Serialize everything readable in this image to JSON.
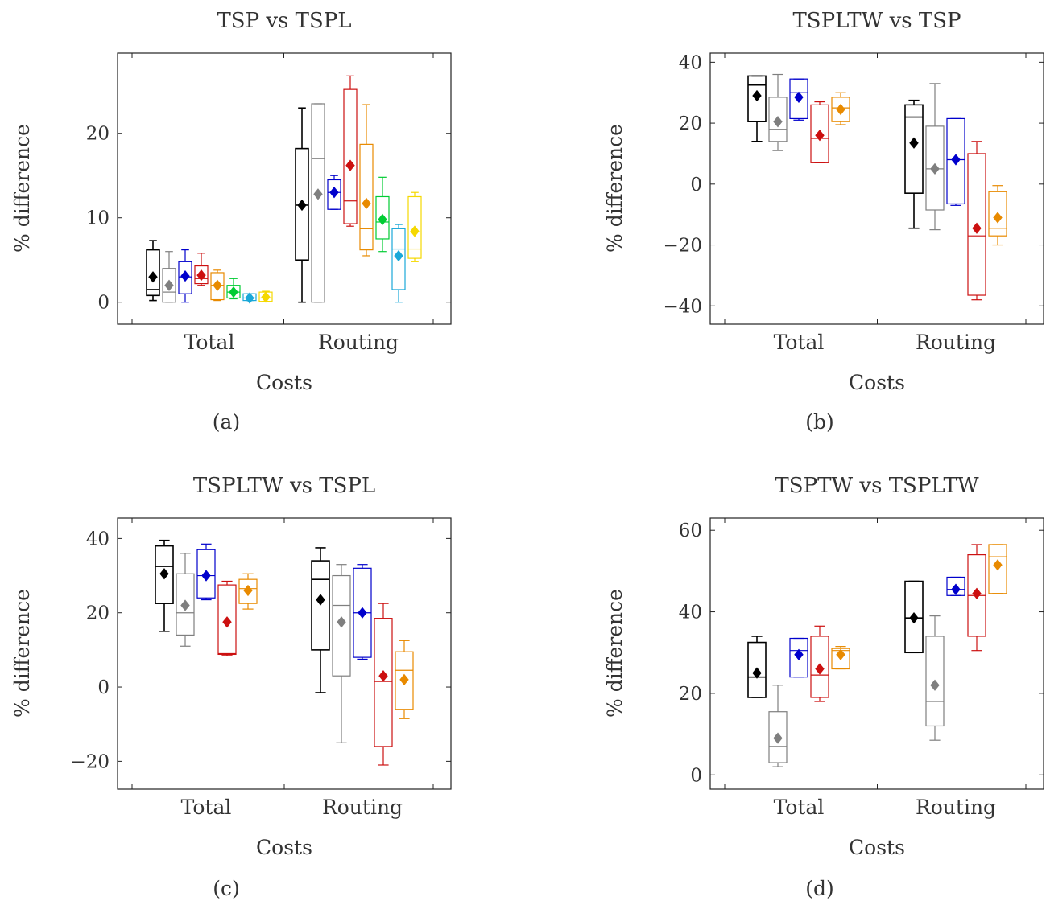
{
  "chart_data": [
    {
      "type": "box",
      "caption": "(a)",
      "title": "TSP vs TSPL",
      "xlabel": "Costs",
      "ylabel": "% difference",
      "categories": [
        "Total",
        "Routing"
      ],
      "ylim": [
        -2.6,
        29.5
      ],
      "yticks": [
        0,
        10,
        20
      ],
      "colors": [
        "#000000",
        "#7f7f7f",
        "#0000cc",
        "#cc1010",
        "#e88a00",
        "#00cc33",
        "#1aa8d8",
        "#f5d800"
      ],
      "groups": [
        {
          "category": "Total",
          "boxes": [
            {
              "min": 0.2,
              "q1": 0.8,
              "median": 1.5,
              "q3": 6.2,
              "max": 7.3,
              "mean": 3.0
            },
            {
              "min": 0.0,
              "q1": 0.0,
              "median": 1.2,
              "q3": 4.0,
              "max": 6.0,
              "mean": 2.0
            },
            {
              "min": 0.0,
              "q1": 1.0,
              "median": 3.0,
              "q3": 4.8,
              "max": 6.2,
              "mean": 3.1
            },
            {
              "min": 2.0,
              "q1": 2.2,
              "median": 2.8,
              "q3": 4.3,
              "max": 5.8,
              "mean": 3.2
            },
            {
              "min": 0.2,
              "q1": 0.3,
              "median": 2.0,
              "q3": 3.5,
              "max": 3.8,
              "mean": 2.0
            },
            {
              "min": 0.4,
              "q1": 0.5,
              "median": 1.2,
              "q3": 2.0,
              "max": 2.8,
              "mean": 1.2
            },
            {
              "min": 0.2,
              "q1": 0.2,
              "median": 0.5,
              "q3": 1.0,
              "max": 1.0,
              "mean": 0.5
            },
            {
              "min": 0.1,
              "q1": 0.1,
              "median": 0.5,
              "q3": 1.2,
              "max": 1.3,
              "mean": 0.6
            }
          ]
        },
        {
          "category": "Routing",
          "boxes": [
            {
              "min": 0.0,
              "q1": 5.0,
              "median": 11.5,
              "q3": 18.2,
              "max": 23.0,
              "mean": 11.5
            },
            {
              "min": 0.0,
              "q1": 0.0,
              "median": 17.0,
              "q3": 23.5,
              "max": 23.5,
              "mean": 12.8
            },
            {
              "min": 11.0,
              "q1": 11.0,
              "median": 13.0,
              "q3": 14.5,
              "max": 15.0,
              "mean": 13.0
            },
            {
              "min": 9.0,
              "q1": 9.3,
              "median": 12.0,
              "q3": 25.2,
              "max": 26.8,
              "mean": 16.2
            },
            {
              "min": 5.5,
              "q1": 6.2,
              "median": 8.7,
              "q3": 18.7,
              "max": 23.4,
              "mean": 11.7
            },
            {
              "min": 6.0,
              "q1": 7.5,
              "median": 9.5,
              "q3": 12.5,
              "max": 14.8,
              "mean": 9.8
            },
            {
              "min": 0.0,
              "q1": 1.5,
              "median": 6.3,
              "q3": 8.7,
              "max": 9.2,
              "mean": 5.5
            },
            {
              "min": 4.8,
              "q1": 5.2,
              "median": 6.3,
              "q3": 12.5,
              "max": 13.0,
              "mean": 8.4
            }
          ]
        }
      ]
    },
    {
      "type": "box",
      "caption": "(b)",
      "title": "TSPLTW vs TSP",
      "xlabel": "Costs",
      "ylabel": "% difference",
      "categories": [
        "Total",
        "Routing"
      ],
      "ylim": [
        -46,
        43
      ],
      "yticks": [
        -40,
        -20,
        0,
        20,
        40
      ],
      "colors": [
        "#000000",
        "#7f7f7f",
        "#0000cc",
        "#cc1010",
        "#e88a00"
      ],
      "groups": [
        {
          "category": "Total",
          "boxes": [
            {
              "min": 14.0,
              "q1": 20.5,
              "median": 32.5,
              "q3": 35.5,
              "max": 35.5,
              "mean": 29.0
            },
            {
              "min": 11.0,
              "q1": 14.0,
              "median": 18.0,
              "q3": 28.5,
              "max": 36.0,
              "mean": 20.5
            },
            {
              "min": 21.0,
              "q1": 21.5,
              "median": 30.0,
              "q3": 34.5,
              "max": 34.5,
              "mean": 28.5
            },
            {
              "min": 7.0,
              "q1": 7.0,
              "median": 15.0,
              "q3": 26.0,
              "max": 27.0,
              "mean": 16.0
            },
            {
              "min": 19.5,
              "q1": 20.5,
              "median": 25.0,
              "q3": 28.5,
              "max": 30.0,
              "mean": 24.5
            }
          ]
        },
        {
          "category": "Routing",
          "boxes": [
            {
              "min": -14.5,
              "q1": -3.0,
              "median": 22.0,
              "q3": 26.0,
              "max": 27.5,
              "mean": 13.5
            },
            {
              "min": -15.0,
              "q1": -8.5,
              "median": 5.0,
              "q3": 19.0,
              "max": 33.0,
              "mean": 5.0
            },
            {
              "min": -7.0,
              "q1": -6.5,
              "median": 8.0,
              "q3": 21.5,
              "max": 21.5,
              "mean": 8.0
            },
            {
              "min": -38.0,
              "q1": -36.5,
              "median": -17.0,
              "q3": 10.0,
              "max": 14.0,
              "mean": -14.5
            },
            {
              "min": -20.0,
              "q1": -17.0,
              "median": -14.5,
              "q3": -2.5,
              "max": -0.5,
              "mean": -11.0
            }
          ]
        }
      ]
    },
    {
      "type": "box",
      "caption": "(c)",
      "title": "TSPLTW vs TSPL",
      "xlabel": "Costs",
      "ylabel": "% difference",
      "categories": [
        "Total",
        "Routing"
      ],
      "ylim": [
        -27.5,
        45.5
      ],
      "yticks": [
        -20,
        0,
        20,
        40
      ],
      "colors": [
        "#000000",
        "#7f7f7f",
        "#0000cc",
        "#cc1010",
        "#e88a00"
      ],
      "groups": [
        {
          "category": "Total",
          "boxes": [
            {
              "min": 15.0,
              "q1": 22.5,
              "median": 32.5,
              "q3": 38.0,
              "max": 39.5,
              "mean": 30.5
            },
            {
              "min": 11.0,
              "q1": 14.0,
              "median": 20.0,
              "q3": 30.5,
              "max": 36.0,
              "mean": 22.0
            },
            {
              "min": 23.5,
              "q1": 24.0,
              "median": 30.0,
              "q3": 37.0,
              "max": 38.5,
              "mean": 30.0
            },
            {
              "min": 8.5,
              "q1": 8.8,
              "median": 9.0,
              "q3": 27.5,
              "max": 28.5,
              "mean": 17.5
            },
            {
              "min": 21.0,
              "q1": 22.5,
              "median": 26.5,
              "q3": 29.0,
              "max": 30.5,
              "mean": 26.0
            }
          ]
        },
        {
          "category": "Routing",
          "boxes": [
            {
              "min": -1.5,
              "q1": 10.0,
              "median": 29.0,
              "q3": 34.0,
              "max": 37.5,
              "mean": 23.5
            },
            {
              "min": -15.0,
              "q1": 3.0,
              "median": 22.0,
              "q3": 30.0,
              "max": 33.0,
              "mean": 17.5
            },
            {
              "min": 7.5,
              "q1": 8.0,
              "median": 20.0,
              "q3": 32.0,
              "max": 33.0,
              "mean": 20.0
            },
            {
              "min": -21.0,
              "q1": -16.0,
              "median": 1.5,
              "q3": 18.5,
              "max": 22.5,
              "mean": 3.0
            },
            {
              "min": -8.5,
              "q1": -6.0,
              "median": 4.5,
              "q3": 9.5,
              "max": 12.5,
              "mean": 2.0
            }
          ]
        }
      ]
    },
    {
      "type": "box",
      "caption": "(d)",
      "title": "TSPTW vs TSPLTW",
      "xlabel": "Costs",
      "ylabel": "% difference",
      "categories": [
        "Total",
        "Routing"
      ],
      "ylim": [
        -3.5,
        63.0
      ],
      "yticks": [
        0,
        20,
        40,
        60
      ],
      "colors": [
        "#000000",
        "#7f7f7f",
        "#0000cc",
        "#cc1010",
        "#e88a00"
      ],
      "groups": [
        {
          "category": "Total",
          "boxes": [
            {
              "min": 19.0,
              "q1": 19.0,
              "median": 24.0,
              "q3": 32.5,
              "max": 34.0,
              "mean": 25.0
            },
            {
              "min": 2.0,
              "q1": 3.0,
              "median": 7.0,
              "q3": 15.5,
              "max": 22.0,
              "mean": 9.0
            },
            {
              "min": 24.0,
              "q1": 24.0,
              "median": 30.5,
              "q3": 33.5,
              "max": 33.5,
              "mean": 29.5
            },
            {
              "min": 18.0,
              "q1": 19.0,
              "median": 24.5,
              "q3": 34.0,
              "max": 36.5,
              "mean": 26.0
            },
            {
              "min": 26.0,
              "q1": 26.0,
              "median": 30.5,
              "q3": 31.0,
              "max": 31.5,
              "mean": 29.5
            }
          ]
        },
        {
          "category": "Routing",
          "boxes": [
            {
              "min": 30.0,
              "q1": 30.0,
              "median": 38.5,
              "q3": 47.5,
              "max": 47.5,
              "mean": 38.5
            },
            {
              "min": 8.5,
              "q1": 12.0,
              "median": 18.0,
              "q3": 34.0,
              "max": 39.0,
              "mean": 22.0
            },
            {
              "min": 44.0,
              "q1": 44.0,
              "median": 45.5,
              "q3": 48.5,
              "max": 48.5,
              "mean": 45.5
            },
            {
              "min": 30.5,
              "q1": 34.0,
              "median": 44.0,
              "q3": 54.0,
              "max": 56.5,
              "mean": 44.5
            },
            {
              "min": 44.5,
              "q1": 44.5,
              "median": 53.5,
              "q3": 56.5,
              "max": 56.5,
              "mean": 51.5
            }
          ]
        }
      ]
    }
  ]
}
